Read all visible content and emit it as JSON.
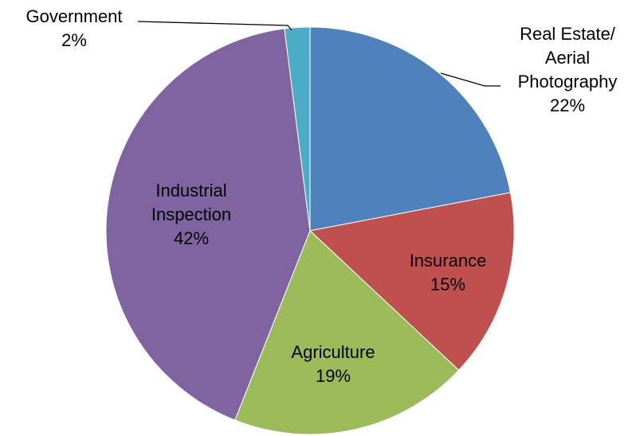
{
  "chart_data": {
    "type": "pie",
    "categories": [
      "Real Estate/\nAerial\nPhotography",
      "Insurance",
      "Agriculture",
      "Industrial\nInspection",
      "Government"
    ],
    "values": [
      22,
      15,
      19,
      42,
      2
    ],
    "value_labels": [
      "22%",
      "15%",
      "19%",
      "42%",
      "2%"
    ],
    "colors": [
      "#4f81bd",
      "#c0504d",
      "#9bbb59",
      "#8064a2",
      "#4bacc6"
    ]
  }
}
